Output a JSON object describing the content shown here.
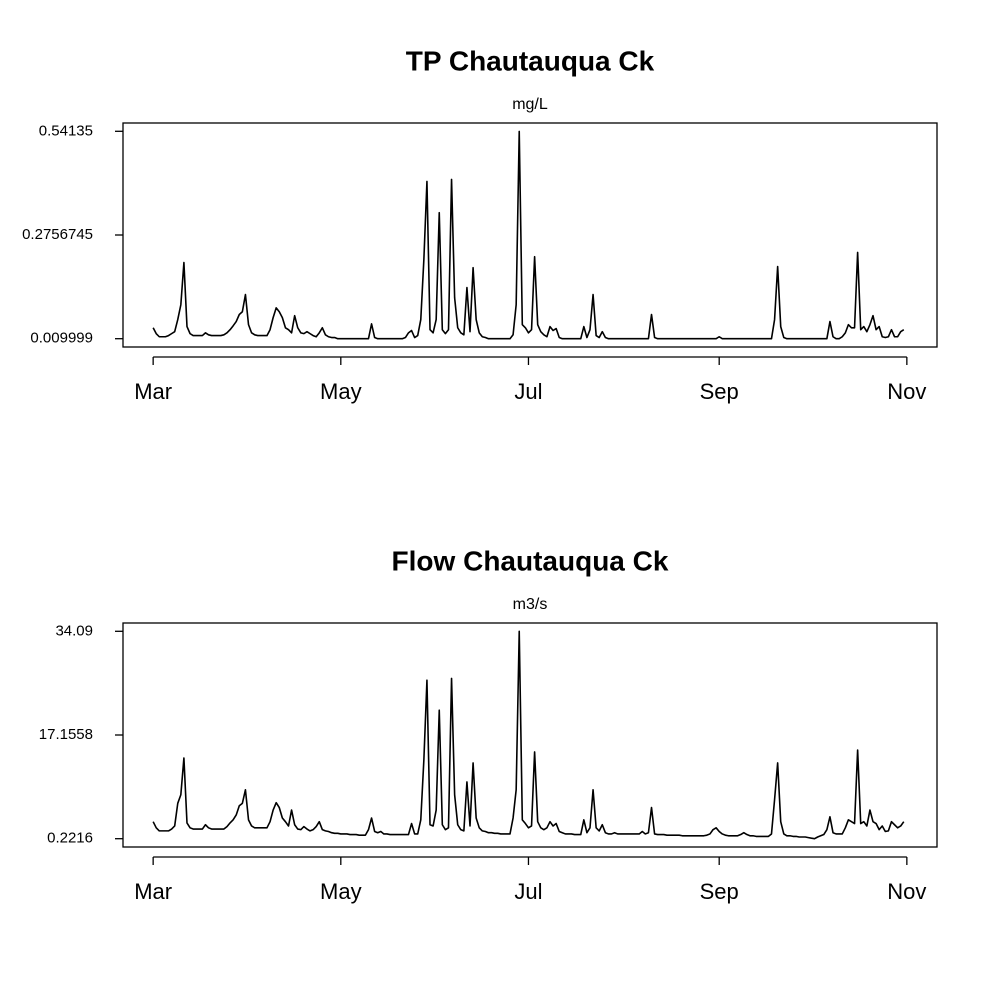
{
  "chart_data": [
    {
      "type": "line",
      "title": "TP Chautauqua Ck",
      "subtitle": "mg/L",
      "categories": [
        "Mar",
        null,
        null,
        null,
        null,
        null,
        null,
        null,
        null,
        null,
        null,
        null,
        null,
        null,
        null,
        null,
        null,
        null,
        null,
        null,
        null,
        null,
        null,
        null,
        null,
        null,
        null,
        null,
        null,
        null,
        null,
        null,
        null,
        null,
        null,
        null,
        null,
        null,
        null,
        null,
        null,
        null,
        null,
        null,
        null,
        null,
        null,
        null,
        null,
        null,
        null,
        null,
        null,
        null,
        null,
        null,
        null,
        null,
        null,
        null,
        null,
        "May",
        null,
        null,
        null,
        null,
        null,
        null,
        null,
        null,
        null,
        null,
        null,
        null,
        null,
        null,
        null,
        null,
        null,
        null,
        null,
        null,
        null,
        null,
        null,
        null,
        null,
        null,
        null,
        null,
        null,
        null,
        null,
        null,
        null,
        null,
        null,
        null,
        null,
        null,
        null,
        null,
        null,
        null,
        null,
        null,
        null,
        null,
        null,
        null,
        null,
        null,
        null,
        null,
        null,
        null,
        null,
        null,
        null,
        null,
        null,
        null,
        "Jul",
        null,
        null,
        null,
        null,
        null,
        null,
        null,
        null,
        null,
        null,
        null,
        null,
        null,
        null,
        null,
        null,
        null,
        null,
        null,
        null,
        null,
        null,
        null,
        null,
        null,
        null,
        null,
        null,
        null,
        null,
        null,
        null,
        null,
        null,
        null,
        null,
        null,
        null,
        null,
        null,
        null,
        null,
        null,
        null,
        null,
        null,
        null,
        null,
        null,
        null,
        null,
        null,
        null,
        null,
        null,
        null,
        null,
        null,
        null,
        null,
        null,
        "Sep",
        null,
        null,
        null,
        null,
        null,
        null,
        null,
        null,
        null,
        null,
        null,
        null,
        null,
        null,
        null,
        null,
        null,
        null,
        null,
        null,
        null,
        null,
        null,
        null,
        null,
        null,
        null,
        null,
        null,
        null,
        null,
        null,
        null,
        null,
        null,
        null,
        null,
        null,
        null,
        null,
        null,
        null,
        null,
        null,
        null,
        null,
        null,
        null,
        null,
        null,
        null,
        null,
        null,
        null,
        null,
        null,
        null,
        null,
        null,
        null,
        "Nov"
      ],
      "series": [
        {
          "color": "#000000",
          "values": [
            0.038,
            0.023,
            0.015,
            0.015,
            0.015,
            0.018,
            0.023,
            0.028,
            0.059,
            0.097,
            0.205,
            0.041,
            0.023,
            0.018,
            0.018,
            0.018,
            0.018,
            0.025,
            0.02,
            0.018,
            0.018,
            0.018,
            0.018,
            0.02,
            0.025,
            0.033,
            0.043,
            0.054,
            0.072,
            0.079,
            0.123,
            0.046,
            0.025,
            0.02,
            0.018,
            0.018,
            0.018,
            0.018,
            0.033,
            0.064,
            0.089,
            0.079,
            0.064,
            0.038,
            0.033,
            0.025,
            0.069,
            0.038,
            0.025,
            0.023,
            0.028,
            0.023,
            0.018,
            0.015,
            0.025,
            0.038,
            0.02,
            0.015,
            0.013,
            0.013,
            0.01,
            0.01,
            0.01,
            0.01,
            0.01,
            0.01,
            0.01,
            0.01,
            0.01,
            0.01,
            0.01,
            0.048,
            0.013,
            0.01,
            0.01,
            0.01,
            0.01,
            0.01,
            0.01,
            0.01,
            0.01,
            0.01,
            0.013,
            0.025,
            0.031,
            0.013,
            0.018,
            0.059,
            0.213,
            0.413,
            0.033,
            0.025,
            0.059,
            0.333,
            0.033,
            0.023,
            0.033,
            0.418,
            0.115,
            0.038,
            0.025,
            0.02,
            0.141,
            0.028,
            0.192,
            0.059,
            0.025,
            0.015,
            0.013,
            0.01,
            0.01,
            0.01,
            0.01,
            0.01,
            0.01,
            0.01,
            0.01,
            0.02,
            0.097,
            0.541,
            0.046,
            0.038,
            0.025,
            0.033,
            0.22,
            0.046,
            0.028,
            0.02,
            0.015,
            0.041,
            0.031,
            0.036,
            0.013,
            0.01,
            0.01,
            0.01,
            0.01,
            0.01,
            0.01,
            0.01,
            0.041,
            0.013,
            0.033,
            0.123,
            0.018,
            0.013,
            0.028,
            0.013,
            0.01,
            0.01,
            0.01,
            0.01,
            0.01,
            0.01,
            0.01,
            0.01,
            0.01,
            0.01,
            0.01,
            0.01,
            0.01,
            0.01,
            0.072,
            0.013,
            0.01,
            0.01,
            0.01,
            0.01,
            0.01,
            0.01,
            0.01,
            0.01,
            0.01,
            0.01,
            0.01,
            0.01,
            0.01,
            0.01,
            0.01,
            0.01,
            0.01,
            0.01,
            0.01,
            0.01,
            0.015,
            0.01,
            0.01,
            0.01,
            0.01,
            0.01,
            0.01,
            0.01,
            0.01,
            0.01,
            0.01,
            0.01,
            0.01,
            0.01,
            0.01,
            0.01,
            0.01,
            0.01,
            0.059,
            0.195,
            0.041,
            0.013,
            0.01,
            0.01,
            0.01,
            0.01,
            0.01,
            0.01,
            0.01,
            0.01,
            0.01,
            0.01,
            0.01,
            0.01,
            0.01,
            0.01,
            0.054,
            0.015,
            0.01,
            0.01,
            0.015,
            0.025,
            0.046,
            0.038,
            0.038,
            0.231,
            0.033,
            0.041,
            0.028,
            0.046,
            0.069,
            0.033,
            0.041,
            0.015,
            0.013,
            0.015,
            0.033,
            0.015,
            0.015,
            0.028,
            0.033,
            null
          ]
        }
      ],
      "ylim": [
        -0.011255,
        0.562604
      ],
      "yticks": [
        0.009999,
        0.2756745,
        0.54135
      ]
    },
    {
      "type": "line",
      "title": "Flow Chautauqua Ck",
      "subtitle": "m3/s",
      "categories": [
        "Mar",
        null,
        null,
        null,
        null,
        null,
        null,
        null,
        null,
        null,
        null,
        null,
        null,
        null,
        null,
        null,
        null,
        null,
        null,
        null,
        null,
        null,
        null,
        null,
        null,
        null,
        null,
        null,
        null,
        null,
        null,
        null,
        null,
        null,
        null,
        null,
        null,
        null,
        null,
        null,
        null,
        null,
        null,
        null,
        null,
        null,
        null,
        null,
        null,
        null,
        null,
        null,
        null,
        null,
        null,
        null,
        null,
        null,
        null,
        null,
        null,
        "May",
        null,
        null,
        null,
        null,
        null,
        null,
        null,
        null,
        null,
        null,
        null,
        null,
        null,
        null,
        null,
        null,
        null,
        null,
        null,
        null,
        null,
        null,
        null,
        null,
        null,
        null,
        null,
        null,
        null,
        null,
        null,
        null,
        null,
        null,
        null,
        null,
        null,
        null,
        null,
        null,
        null,
        null,
        null,
        null,
        null,
        null,
        null,
        null,
        null,
        null,
        null,
        null,
        null,
        null,
        null,
        null,
        null,
        null,
        null,
        null,
        "Jul",
        null,
        null,
        null,
        null,
        null,
        null,
        null,
        null,
        null,
        null,
        null,
        null,
        null,
        null,
        null,
        null,
        null,
        null,
        null,
        null,
        null,
        null,
        null,
        null,
        null,
        null,
        null,
        null,
        null,
        null,
        null,
        null,
        null,
        null,
        null,
        null,
        null,
        null,
        null,
        null,
        null,
        null,
        null,
        null,
        null,
        null,
        null,
        null,
        null,
        null,
        null,
        null,
        null,
        null,
        null,
        null,
        null,
        null,
        null,
        null,
        null,
        "Sep",
        null,
        null,
        null,
        null,
        null,
        null,
        null,
        null,
        null,
        null,
        null,
        null,
        null,
        null,
        null,
        null,
        null,
        null,
        null,
        null,
        null,
        null,
        null,
        null,
        null,
        null,
        null,
        null,
        null,
        null,
        null,
        null,
        null,
        null,
        null,
        null,
        null,
        null,
        null,
        null,
        null,
        null,
        null,
        null,
        null,
        null,
        null,
        null,
        null,
        null,
        null,
        null,
        null,
        null,
        null,
        null,
        null,
        null,
        null,
        null,
        "Nov"
      ],
      "series": [
        {
          "color": "#000000",
          "values": [
            3.0,
            2.0,
            1.5,
            1.5,
            1.5,
            1.5,
            1.8,
            2.3,
            6.0,
            7.4,
            13.4,
            2.8,
            2.0,
            1.8,
            1.8,
            1.8,
            1.8,
            2.5,
            2.0,
            1.8,
            1.8,
            1.8,
            1.8,
            1.8,
            2.2,
            2.8,
            3.3,
            4.1,
            5.6,
            6.0,
            8.2,
            3.3,
            2.3,
            2.0,
            2.0,
            2.0,
            2.0,
            2.0,
            3.0,
            4.9,
            6.1,
            5.3,
            3.6,
            3.0,
            2.3,
            4.9,
            2.5,
            1.8,
            1.7,
            2.2,
            1.8,
            1.5,
            1.7,
            2.2,
            3.0,
            1.7,
            1.5,
            1.4,
            1.2,
            1.1,
            1.1,
            1.0,
            1.0,
            1.0,
            0.9,
            0.9,
            0.9,
            0.8,
            0.8,
            0.8,
            1.7,
            3.6,
            1.4,
            1.2,
            1.4,
            1.0,
            1.0,
            0.9,
            0.9,
            0.9,
            0.9,
            0.9,
            0.9,
            0.9,
            2.7,
            1.0,
            1.0,
            3.3,
            13.1,
            26.1,
            2.5,
            2.3,
            4.9,
            21.2,
            2.5,
            1.7,
            2.0,
            26.4,
            7.4,
            2.5,
            1.7,
            1.5,
            9.5,
            2.3,
            12.6,
            3.6,
            2.0,
            1.5,
            1.4,
            1.2,
            1.2,
            1.1,
            1.1,
            1.0,
            1.0,
            1.0,
            1.0,
            3.6,
            8.2,
            34.09,
            3.3,
            2.7,
            2.0,
            2.3,
            14.4,
            3.0,
            2.0,
            1.7,
            2.0,
            3.0,
            2.3,
            2.7,
            1.4,
            1.2,
            1.0,
            1.0,
            1.0,
            0.9,
            0.9,
            0.9,
            3.3,
            1.2,
            2.0,
            8.2,
            2.0,
            1.5,
            2.5,
            1.2,
            1.0,
            1.0,
            1.2,
            1.0,
            1.0,
            1.0,
            1.0,
            1.0,
            1.0,
            1.0,
            1.0,
            1.4,
            1.0,
            1.2,
            5.3,
            1.0,
            0.9,
            0.9,
            0.9,
            0.8,
            0.8,
            0.8,
            0.8,
            0.8,
            0.7,
            0.7,
            0.7,
            0.7,
            0.7,
            0.7,
            0.7,
            0.7,
            0.8,
            1.0,
            1.7,
            2.0,
            1.4,
            1.0,
            0.8,
            0.7,
            0.7,
            0.7,
            0.7,
            0.9,
            1.2,
            0.9,
            0.7,
            0.7,
            0.6,
            0.6,
            0.6,
            0.6,
            0.6,
            1.0,
            6.6,
            12.6,
            3.0,
            1.0,
            0.7,
            0.7,
            0.6,
            0.6,
            0.5,
            0.5,
            0.5,
            0.4,
            0.3,
            0.2216,
            0.5,
            0.7,
            0.9,
            1.7,
            3.8,
            1.2,
            1.0,
            1.0,
            1.0,
            2.0,
            3.3,
            3.0,
            2.7,
            14.7,
            2.7,
            3.0,
            2.3,
            4.9,
            3.0,
            2.7,
            1.7,
            2.3,
            1.4,
            1.5,
            3.0,
            2.5,
            2.0,
            2.3,
            3.0,
            null
          ]
        }
      ],
      "ylim": [
        -1.1331,
        35.4447
      ],
      "yticks": [
        0.2216,
        17.1558,
        34.09
      ]
    }
  ]
}
